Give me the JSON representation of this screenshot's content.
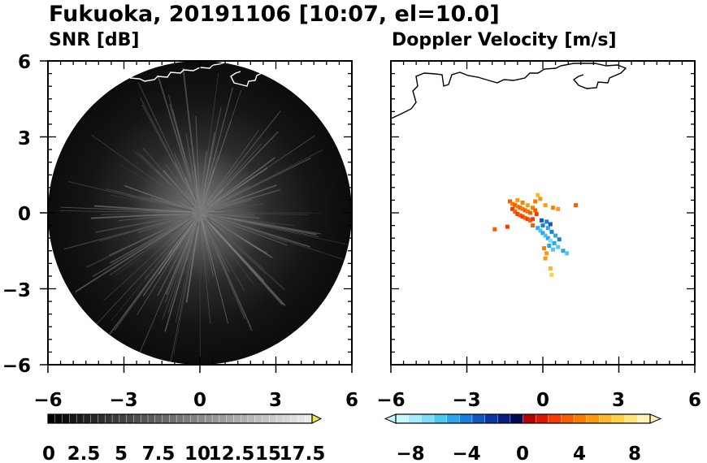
{
  "title": "Fukuoka, 20191106 [10:07, el=10.0]",
  "panels": {
    "left": {
      "title": "SNR [dB]"
    },
    "right": {
      "title": "Doppler Velocity [m/s]"
    }
  },
  "colorbars": {
    "snr": {
      "labels": [
        "0",
        "2.5",
        "5",
        "7.5",
        "10",
        "12.5",
        "15",
        "17.5"
      ],
      "range": [
        0,
        18.5
      ],
      "extend": "max",
      "extend_color": "#f2e64a"
    },
    "velocity": {
      "labels": [
        "−8",
        "−4",
        "0",
        "4",
        "8"
      ],
      "range": [
        -10,
        10
      ],
      "extend": "both",
      "colors": [
        "#c8f7ff",
        "#a8ecff",
        "#7dddf7",
        "#4fc8f0",
        "#2aa6ea",
        "#1a7fd8",
        "#1358c0",
        "#0c36a4",
        "#071d80",
        "#000a50",
        "#b40000",
        "#dd1800",
        "#f23c00",
        "#f75e00",
        "#fa7d00",
        "#fb9a10",
        "#fcb82a",
        "#fdd04a",
        "#fee47a",
        "#fff3b8"
      ]
    }
  },
  "chart_data": [
    {
      "type": "heatmap",
      "title": "SNR [dB]",
      "xlim": [
        -6,
        6
      ],
      "ylim": [
        -6,
        6
      ],
      "xticks": [
        "−6",
        "−3",
        "0",
        "3",
        "6"
      ],
      "yticks": [
        "6",
        "3",
        "0",
        "−3",
        "−6"
      ],
      "coverage": {
        "shape": "circle",
        "center": [
          0,
          0
        ],
        "radius": 6
      },
      "background_snr": 0.5,
      "enhanced_region": {
        "center": [
          0,
          0
        ],
        "peak_snr": 7.5,
        "bearings_note": "radial streaks"
      },
      "coastline_color": "#ffffff"
    },
    {
      "type": "scatter",
      "title": "Doppler Velocity [m/s]",
      "xlim": [
        -6,
        6
      ],
      "ylim": [
        -6,
        6
      ],
      "xticks": [
        "−6",
        "−3",
        "0",
        "3",
        "6"
      ],
      "yticks": [],
      "coastline_color": "#000000",
      "points": [
        {
          "x": -1.3,
          "y": 0.45,
          "v": 3
        },
        {
          "x": -1.2,
          "y": 0.35,
          "v": 4
        },
        {
          "x": -1.1,
          "y": 0.3,
          "v": 3
        },
        {
          "x": -1.0,
          "y": 0.25,
          "v": 4
        },
        {
          "x": -0.9,
          "y": 0.2,
          "v": 3
        },
        {
          "x": -0.8,
          "y": 0.15,
          "v": 4
        },
        {
          "x": -0.7,
          "y": 0.1,
          "v": 3
        },
        {
          "x": -0.6,
          "y": 0.05,
          "v": 4
        },
        {
          "x": -0.5,
          "y": 0.0,
          "v": 3
        },
        {
          "x": -1.2,
          "y": 0.15,
          "v": 2
        },
        {
          "x": -1.1,
          "y": 0.05,
          "v": 3
        },
        {
          "x": -1.0,
          "y": -0.05,
          "v": 2
        },
        {
          "x": -0.9,
          "y": -0.1,
          "v": 3
        },
        {
          "x": -0.8,
          "y": -0.15,
          "v": 2
        },
        {
          "x": -0.7,
          "y": -0.2,
          "v": 3
        },
        {
          "x": -0.6,
          "y": -0.25,
          "v": 2
        },
        {
          "x": -0.5,
          "y": -0.3,
          "v": 3
        },
        {
          "x": -0.4,
          "y": -0.25,
          "v": 2
        },
        {
          "x": -1.0,
          "y": 0.5,
          "v": 5
        },
        {
          "x": -0.8,
          "y": 0.4,
          "v": 4
        },
        {
          "x": -0.6,
          "y": 0.3,
          "v": 5
        },
        {
          "x": -0.4,
          "y": 0.2,
          "v": 4
        },
        {
          "x": -0.3,
          "y": 0.1,
          "v": 3
        },
        {
          "x": -0.25,
          "y": -0.05,
          "v": 2
        },
        {
          "x": -0.2,
          "y": 0.7,
          "v": 6
        },
        {
          "x": -0.1,
          "y": 0.55,
          "v": 5
        },
        {
          "x": -0.3,
          "y": 0.45,
          "v": 4
        },
        {
          "x": 0.1,
          "y": 0.3,
          "v": 5
        },
        {
          "x": 0.4,
          "y": 0.2,
          "v": 4
        },
        {
          "x": 0.6,
          "y": 0.15,
          "v": 5
        },
        {
          "x": 1.3,
          "y": 0.3,
          "v": 3
        },
        {
          "x": -1.9,
          "y": -0.65,
          "v": 3
        },
        {
          "x": -1.4,
          "y": -0.55,
          "v": 2
        },
        {
          "x": -0.4,
          "y": -0.5,
          "v": 3
        },
        {
          "x": -0.2,
          "y": -0.6,
          "v": -6
        },
        {
          "x": -0.1,
          "y": -0.7,
          "v": -7
        },
        {
          "x": 0.0,
          "y": -0.8,
          "v": -6
        },
        {
          "x": 0.1,
          "y": -0.9,
          "v": -7
        },
        {
          "x": 0.2,
          "y": -1.0,
          "v": -6
        },
        {
          "x": 0.3,
          "y": -1.1,
          "v": -8
        },
        {
          "x": 0.45,
          "y": -1.2,
          "v": -6
        },
        {
          "x": 0.6,
          "y": -1.35,
          "v": -7
        },
        {
          "x": 0.8,
          "y": -1.5,
          "v": -6
        },
        {
          "x": 0.95,
          "y": -1.6,
          "v": -7
        },
        {
          "x": 0.0,
          "y": -0.5,
          "v": -5
        },
        {
          "x": 0.2,
          "y": -0.6,
          "v": -6
        },
        {
          "x": 0.35,
          "y": -0.75,
          "v": -5
        },
        {
          "x": 0.5,
          "y": -0.9,
          "v": -6
        },
        {
          "x": 0.65,
          "y": -1.05,
          "v": -5
        },
        {
          "x": -0.05,
          "y": -0.3,
          "v": -4
        },
        {
          "x": 0.15,
          "y": -0.35,
          "v": -5
        },
        {
          "x": 0.3,
          "y": -0.45,
          "v": -4
        },
        {
          "x": 0.25,
          "y": -1.3,
          "v": -6
        },
        {
          "x": 0.4,
          "y": -1.45,
          "v": -7
        },
        {
          "x": 0.1,
          "y": -1.8,
          "v": 5
        },
        {
          "x": 0.3,
          "y": -2.2,
          "v": 6
        },
        {
          "x": 0.35,
          "y": -2.45,
          "v": 7
        },
        {
          "x": 0.05,
          "y": -1.4,
          "v": 4
        },
        {
          "x": 0.15,
          "y": -1.6,
          "v": 5
        }
      ]
    }
  ]
}
